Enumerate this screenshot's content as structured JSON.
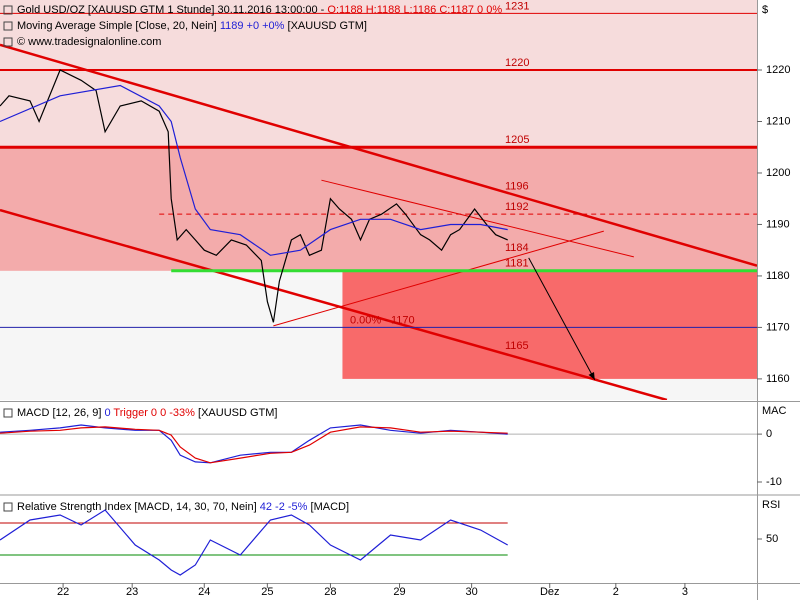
{
  "chart_data": [
    {
      "type": "line",
      "title": "Gold USD/OZ [XAUUSD GTM  1 Stunde] 30.11.2016 13:00:00 -",
      "quote": "O:1188 H:1188 L:1186 C:1187 0 0%",
      "source": "© www.tradesignalonline.com",
      "unit": "$",
      "xlim": [
        0,
        252
      ],
      "ylim": [
        1155.9,
        1233.6
      ],
      "yticks": [
        1160,
        1170,
        1180,
        1190,
        1200,
        1210,
        1220
      ],
      "zones": [
        {
          "from": 1181,
          "to": 1233.6,
          "x_from": 0,
          "color": "#f6dcdc"
        },
        {
          "from": 1181,
          "to": 1205,
          "x_from": 0,
          "color": "#f3abab"
        },
        {
          "from": 1160,
          "to": 1181,
          "x_from": 114,
          "color": "#f86a6a"
        }
      ],
      "levels": [
        {
          "value": 1231,
          "color": "#e00000",
          "width": 1,
          "x_from": 0
        },
        {
          "value": 1220,
          "color": "#e00000",
          "width": 2,
          "x_from": 0
        },
        {
          "value": 1205,
          "color": "#e00000",
          "width": 3,
          "x_from": 0
        },
        {
          "value": 1196,
          "color": "#e00000",
          "width": 0,
          "x_from": 0
        },
        {
          "value": 1192,
          "color": "#e00000",
          "width": 1,
          "x_from": 53,
          "dash": true
        },
        {
          "value": 1184,
          "color": "#e00000",
          "width": 0,
          "x_from": 0
        },
        {
          "value": 1181,
          "color": "#33dd33",
          "width": 3,
          "x_from": 57
        },
        {
          "value": 1170,
          "color": "#2222aa",
          "width": 1,
          "x_from": 0,
          "label": "0.00% - 1170"
        },
        {
          "value": 1165,
          "color": "#e00000",
          "width": 0,
          "x_from": 0
        }
      ],
      "trendlines": [
        {
          "color": "#e00000",
          "width": 2.5,
          "x": [
            0,
            252
          ],
          "values": [
            1224.9,
            1182
          ]
        },
        {
          "color": "#e00000",
          "width": 2.5,
          "x": [
            0,
            222
          ],
          "values": [
            1192.8,
            1155.9
          ]
        },
        {
          "color": "#e00000",
          "width": 1,
          "x": [
            107,
            211
          ],
          "values": [
            1198.6,
            1183.7
          ]
        },
        {
          "color": "#e00000",
          "width": 1,
          "x": [
            91,
            201
          ],
          "values": [
            1170.3,
            1188.7
          ]
        }
      ],
      "arrow": {
        "color": "#000000",
        "x": [
          176,
          198
        ],
        "values": [
          1183.5,
          1159.8
        ]
      },
      "series": [
        {
          "color": "#000000",
          "x": [
            0,
            3,
            10,
            13,
            20,
            27,
            32,
            35,
            40,
            47,
            53,
            56,
            57,
            59,
            62,
            65,
            68,
            72,
            77,
            82,
            87,
            89,
            91,
            93,
            97,
            100,
            103,
            107,
            110,
            113,
            117,
            120,
            123,
            127,
            132,
            135,
            140,
            143,
            147,
            150,
            153,
            158,
            162,
            165,
            169
          ],
          "values": [
            1213,
            1215,
            1214,
            1210,
            1220,
            1218,
            1216,
            1208,
            1213,
            1214,
            1212,
            1208,
            1195,
            1187,
            1189,
            1187,
            1185,
            1184,
            1187,
            1186,
            1183,
            1175,
            1171,
            1179,
            1187,
            1188,
            1184,
            1185,
            1195,
            1193,
            1191,
            1187,
            1191,
            1192,
            1194,
            1192,
            1188,
            1187,
            1185,
            1188,
            1189,
            1193,
            1190,
            1188,
            1187
          ]
        },
        {
          "name": "Moving Average Simple [Close, 20, Nein]",
          "readout": "1189 +0 +0%",
          "suffix": "[XAUUSD GTM]",
          "color": "#1f1fd6",
          "x": [
            0,
            20,
            40,
            53,
            57,
            60,
            65,
            70,
            80,
            90,
            100,
            110,
            120,
            130,
            140,
            150,
            160,
            169
          ],
          "values": [
            1210,
            1215,
            1217,
            1213,
            1210,
            1203,
            1193,
            1189,
            1188,
            1184,
            1185,
            1189,
            1191,
            1191,
            1189,
            1190,
            1190,
            1189
          ]
        }
      ]
    },
    {
      "type": "line",
      "axis_label": "MAC",
      "suffix": "[XAUUSD GTM]",
      "xlim": [
        0,
        252
      ],
      "ylim": [
        -12.3,
        6.5
      ],
      "yticks": [
        0,
        -10
      ],
      "levels": [
        {
          "value": 0,
          "color": "#b0b0b0",
          "width": 1,
          "x_from": 0
        }
      ],
      "series": [
        {
          "name": "MACD [12, 26, 9]",
          "readout": "0",
          "color": "#1f1fd6",
          "x": [
            0,
            10,
            20,
            27,
            35,
            45,
            53,
            57,
            60,
            65,
            70,
            80,
            90,
            97,
            103,
            110,
            120,
            130,
            140,
            150,
            160,
            169
          ],
          "values": [
            0.4,
            0.8,
            1.3,
            1.9,
            1.3,
            0.8,
            0.8,
            -1.3,
            -4.4,
            -5.8,
            -6,
            -4.4,
            -3.8,
            -3.8,
            -1.3,
            1.3,
            1.9,
            0.8,
            0.2,
            0.8,
            0.4,
            0
          ]
        },
        {
          "name": "Trigger",
          "readout": "0 0 -33%",
          "color": "#e00000",
          "x": [
            0,
            10,
            20,
            27,
            35,
            45,
            53,
            57,
            60,
            65,
            70,
            80,
            90,
            97,
            103,
            110,
            120,
            130,
            140,
            150,
            160,
            169
          ],
          "values": [
            0.2,
            0.6,
            0.8,
            1.3,
            1.5,
            1.0,
            0.8,
            -0.2,
            -2.7,
            -5,
            -6,
            -5,
            -4,
            -3.8,
            -2.3,
            0.4,
            1.5,
            1.3,
            0.4,
            0.6,
            0.4,
            0.2
          ]
        }
      ]
    },
    {
      "type": "line",
      "axis_label": "RSI",
      "suffix": "[MACD]",
      "xlim": [
        0,
        252
      ],
      "ylim": [
        -5,
        102.5
      ],
      "yticks": [
        50
      ],
      "levels": [
        {
          "value": 70,
          "color": "#c00000",
          "width": 1,
          "x_from": 0,
          "x_to": 169
        },
        {
          "value": 30,
          "color": "#008800",
          "width": 1,
          "x_from": 0,
          "x_to": 169
        }
      ],
      "series": [
        {
          "name": "Relative Strength Index [MACD, 14, 30, 70, Nein]",
          "readout": "42 -2 -5%",
          "color": "#1f1fd6",
          "x": [
            0,
            10,
            20,
            27,
            35,
            45,
            53,
            57,
            60,
            65,
            70,
            80,
            90,
            97,
            103,
            110,
            120,
            130,
            140,
            150,
            160,
            169
          ],
          "values": [
            48.8,
            73.8,
            80,
            67.5,
            86.3,
            42.5,
            23.8,
            11.3,
            5,
            17.5,
            48.8,
            30,
            73.8,
            80,
            67.5,
            42.5,
            23.8,
            55,
            48.8,
            73.8,
            61.3,
            42.5
          ]
        }
      ],
      "xticks": [
        {
          "value": 21,
          "label": "22"
        },
        {
          "value": 44,
          "label": "23"
        },
        {
          "value": 68,
          "label": "24"
        },
        {
          "value": 89,
          "label": "25"
        },
        {
          "value": 110,
          "label": "28"
        },
        {
          "value": 133,
          "label": "29"
        },
        {
          "value": 157,
          "label": "30"
        },
        {
          "value": 183,
          "label": "Dez"
        },
        {
          "value": 205,
          "label": "2"
        },
        {
          "value": 228,
          "label": "3"
        }
      ]
    }
  ]
}
